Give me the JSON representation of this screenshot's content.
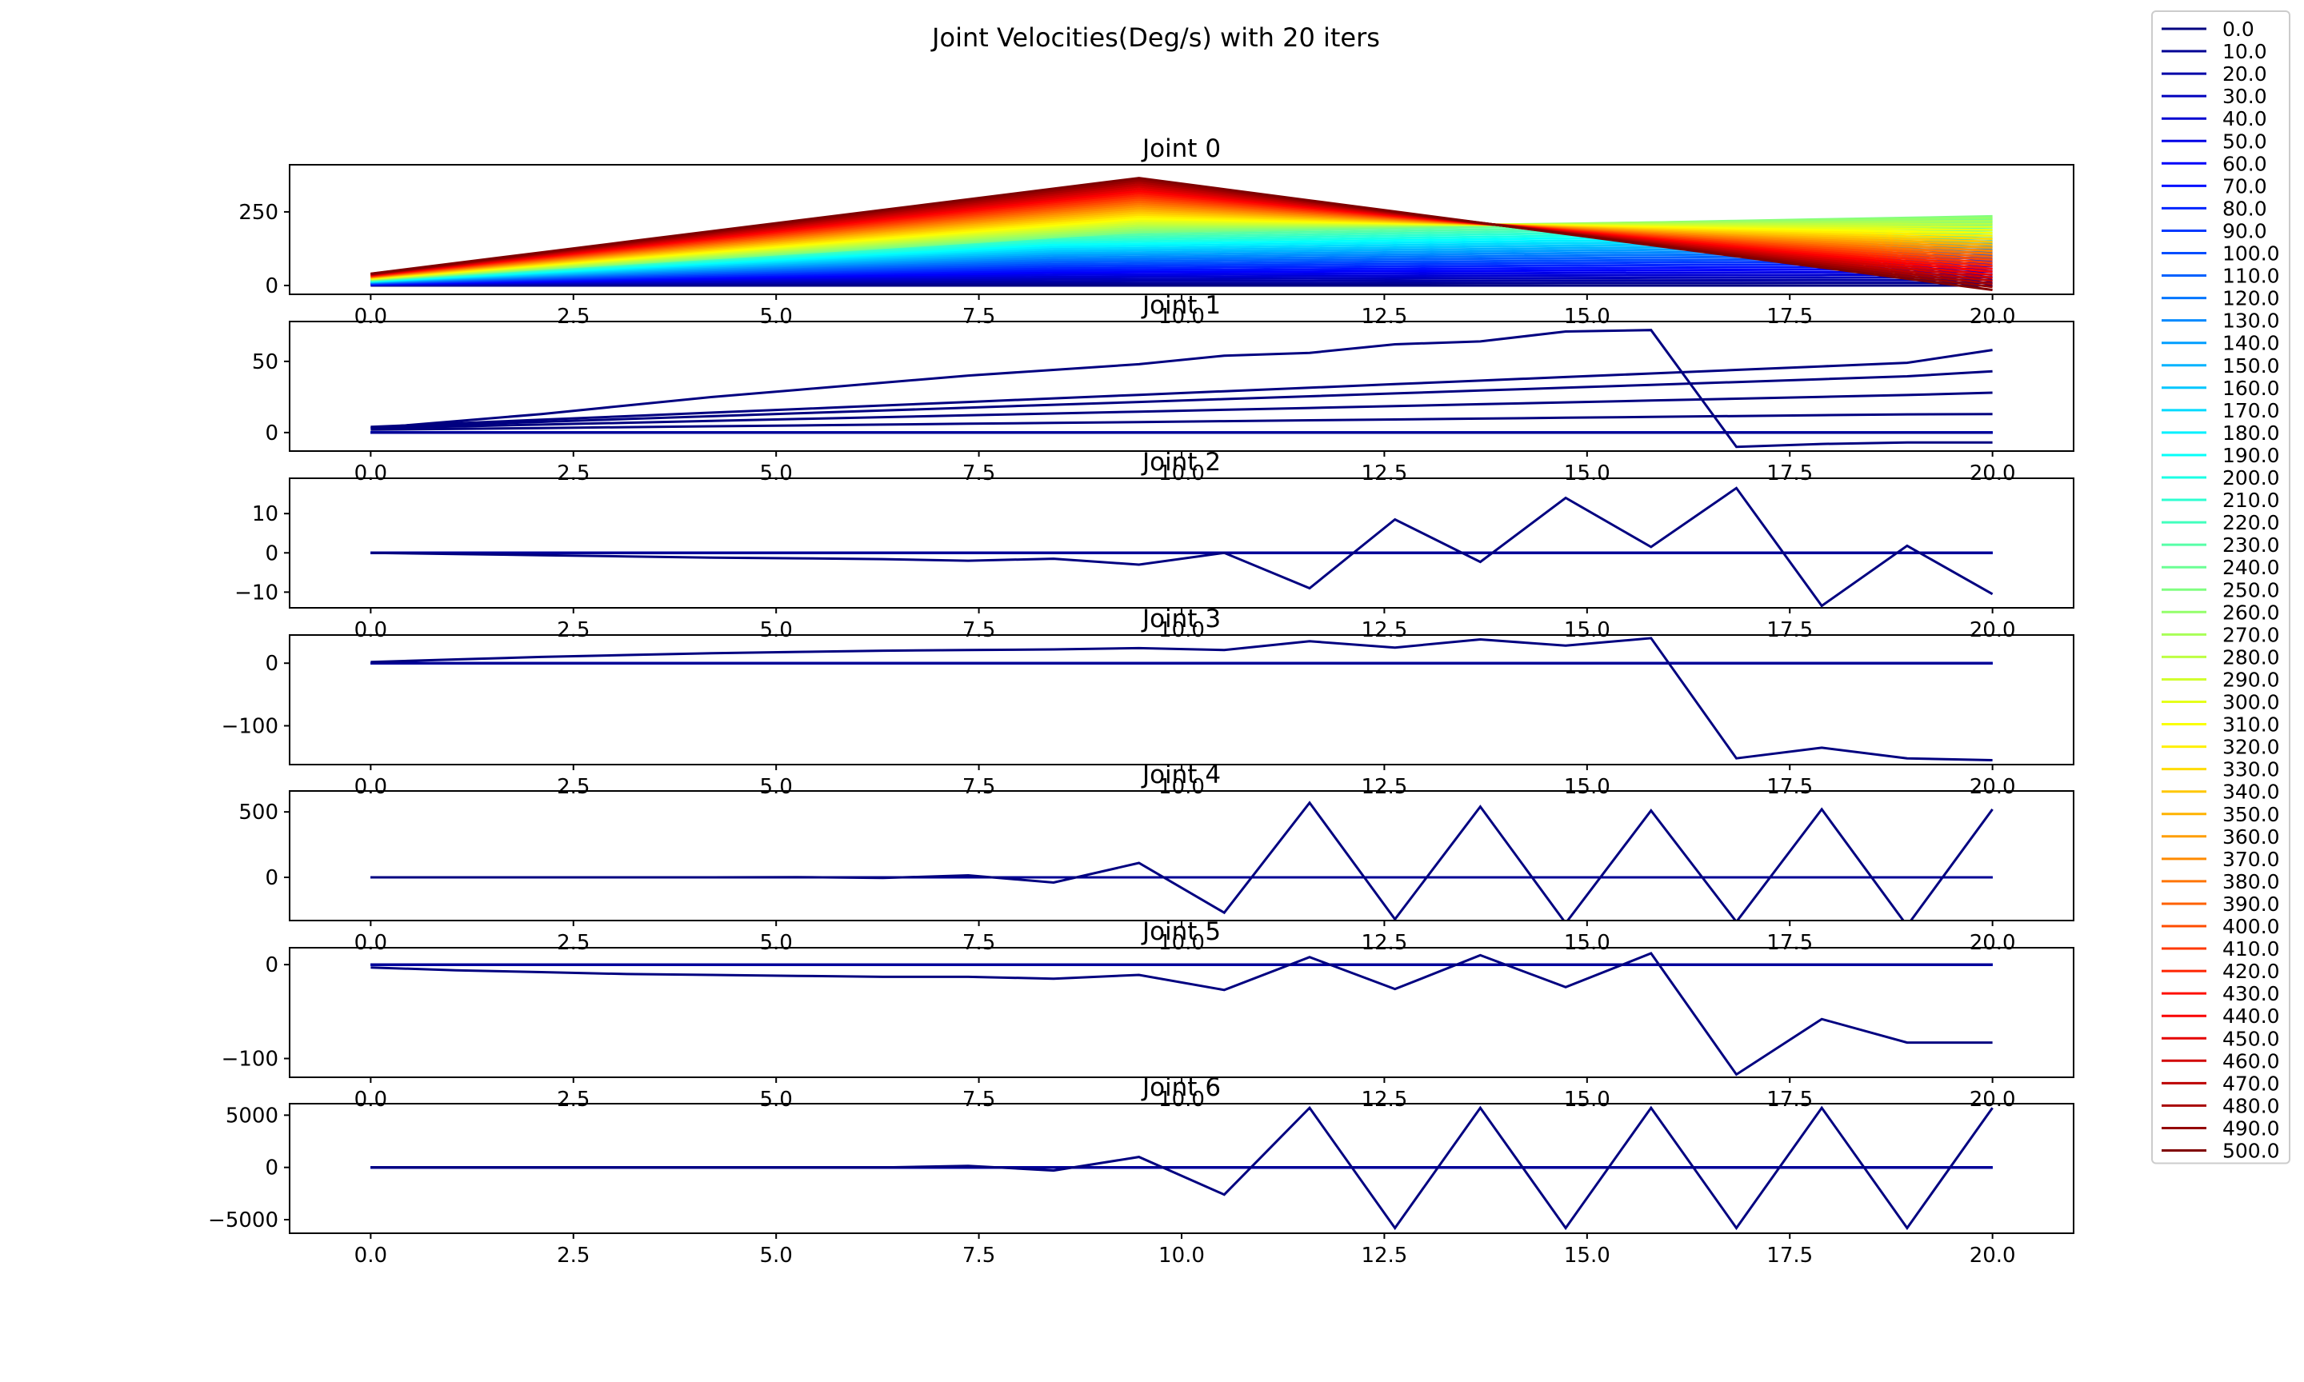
{
  "figure": {
    "title": "Joint Velocities(Deg/s) with 20 iters"
  },
  "chart_data": {
    "type": "line",
    "title": "Joint Velocities(Deg/s) with 20 iters",
    "x": [
      0,
      1.0526,
      2.1053,
      3.1579,
      4.2105,
      5.2632,
      6.3158,
      7.3684,
      8.4211,
      9.4737,
      10.5263,
      11.5789,
      12.6316,
      13.6842,
      14.7368,
      15.7895,
      16.8421,
      17.8947,
      18.9474,
      20.0
    ],
    "xlim": [
      -1,
      21
    ],
    "x_ticks": [
      "0.0",
      "2.5",
      "5.0",
      "7.5",
      "10.0",
      "12.5",
      "15.0",
      "17.5",
      "20.0"
    ],
    "x_tick_values": [
      0,
      2.5,
      5,
      7.5,
      10,
      12.5,
      15,
      17.5,
      20
    ],
    "legend": {
      "location": "upper-right-outside",
      "colormap": "jet",
      "entries": [
        "0.0",
        "10.0",
        "20.0",
        "30.0",
        "40.0",
        "50.0",
        "60.0",
        "70.0",
        "80.0",
        "90.0",
        "100.0",
        "110.0",
        "120.0",
        "130.0",
        "140.0",
        "150.0",
        "160.0",
        "170.0",
        "180.0",
        "190.0",
        "200.0",
        "210.0",
        "220.0",
        "230.0",
        "240.0",
        "250.0",
        "260.0",
        "270.0",
        "280.0",
        "290.0",
        "300.0",
        "310.0",
        "320.0",
        "330.0",
        "340.0",
        "350.0",
        "360.0",
        "370.0",
        "380.0",
        "390.0",
        "400.0",
        "410.0",
        "420.0",
        "430.0",
        "440.0",
        "450.0",
        "460.0",
        "470.0",
        "480.0",
        "490.0",
        "500.0"
      ]
    },
    "subplots": [
      {
        "title": "Joint 0",
        "ylim": [
          -30,
          410
        ],
        "y_ticks": [
          "0",
          "250"
        ],
        "y_tick_values": [
          0,
          250
        ],
        "fan": {
          "start_values": [
            0,
            40
          ],
          "peak_index": 8,
          "peak_shift": 1,
          "peak_values": [
            0,
            365
          ],
          "end_values": [
            0,
            235
          ],
          "end_values_high_gain": [
            240,
            -15
          ]
        }
      },
      {
        "title": "Joint 1",
        "ylim": [
          -13,
          78
        ],
        "y_ticks": [
          "0",
          "50"
        ],
        "y_tick_values": [
          0,
          50
        ],
        "series": [
          {
            "values": [
              4.0,
              6.5,
              9.0,
              11.5,
              14.0,
              16.5,
              19.0,
              21.5,
              24.0,
              26.5,
              29.0,
              31.5,
              34.0,
              36.5,
              39.0,
              41.5,
              44.0,
              46.5,
              49.0,
              58.0
            ]
          },
          {
            "values": [
              3.5,
              5.5,
              7.5,
              9.5,
              11.5,
              13.5,
              15.5,
              17.5,
              19.5,
              21.5,
              23.5,
              25.5,
              27.5,
              29.5,
              31.5,
              33.5,
              35.5,
              37.5,
              39.5,
              43.0
            ]
          },
          {
            "values": [
              3.0,
              4.3,
              5.6,
              6.9,
              8.2,
              9.5,
              10.8,
              12.1,
              13.4,
              14.7,
              16.0,
              17.3,
              18.6,
              19.9,
              21.2,
              22.5,
              23.8,
              25.1,
              26.4,
              28.0
            ]
          },
          {
            "values": [
              2.0,
              2.6,
              3.2,
              3.8,
              4.4,
              5.0,
              5.6,
              6.2,
              6.8,
              7.4,
              8.0,
              8.6,
              9.2,
              9.8,
              10.4,
              11.0,
              11.6,
              12.2,
              12.8,
              13.0
            ]
          },
          {
            "values": [
              3.0,
              8.0,
              13.0,
              19.0,
              25.0,
              30.0,
              35.0,
              40.0,
              44.0,
              48.0,
              54.0,
              56.0,
              62.0,
              64.0,
              71.0,
              72.0,
              -10.0,
              -8.0,
              -7.0,
              -7.0
            ]
          }
        ]
      },
      {
        "title": "Joint 2",
        "ylim": [
          -14,
          19
        ],
        "y_ticks": [
          "10",
          "0",
          "−10"
        ],
        "y_tick_values": [
          10,
          0,
          -10
        ],
        "series": [
          {
            "values": [
              0,
              -0.3,
              -0.6,
              -0.9,
              -1.2,
              -1.4,
              -1.6,
              -2.0,
              -1.5,
              -3.0,
              0,
              -9.0,
              8.5,
              -2.3,
              14.0,
              1.5,
              16.5,
              -13.5,
              1.8,
              -10.5
            ]
          }
        ]
      },
      {
        "title": "Joint 3",
        "ylim": [
          -162,
          45
        ],
        "y_ticks": [
          "0",
          "−100"
        ],
        "y_tick_values": [
          0,
          -100
        ],
        "series": [
          {
            "values": [
              2,
              6,
              10,
              13,
              16,
              18,
              20,
              21,
              22,
              24,
              21,
              35,
              25,
              38,
              28,
              40,
              -152,
              -135,
              -152,
              -155
            ]
          }
        ]
      },
      {
        "title": "Joint 4",
        "ylim": [
          -330,
          660
        ],
        "y_ticks": [
          "500",
          "0"
        ],
        "y_tick_values": [
          500,
          0
        ],
        "series": [
          {
            "values": [
              0,
              0,
              0,
              0,
              0,
              2,
              -5,
              15,
              -40,
              110,
              -270,
              570,
              -320,
              540,
              -350,
              510,
              -340,
              520,
              -370,
              520
            ]
          }
        ]
      },
      {
        "title": "Joint 5",
        "ylim": [
          -120,
          18
        ],
        "y_ticks": [
          "0",
          "−100"
        ],
        "y_tick_values": [
          0,
          -100
        ],
        "series": [
          {
            "values": [
              -3,
              -6,
              -8,
              -10,
              -11,
              -12,
              -13,
              -13,
              -15,
              -11,
              -27,
              8,
              -26,
              10,
              -24,
              12,
              -117,
              -58,
              -83,
              -83
            ]
          }
        ]
      },
      {
        "title": "Joint 6",
        "ylim": [
          -6300,
          6100
        ],
        "y_ticks": [
          "5000",
          "0",
          "−5000"
        ],
        "y_tick_values": [
          5000,
          0,
          -5000
        ],
        "series": [
          {
            "values": [
              0,
              0,
              0,
              0,
              0,
              0,
              0,
              150,
              -300,
              1000,
              -2600,
              5700,
              -5800,
              5700,
              -5800,
              5700,
              -5800,
              5700,
              -5800,
              5700
            ]
          }
        ]
      }
    ]
  }
}
